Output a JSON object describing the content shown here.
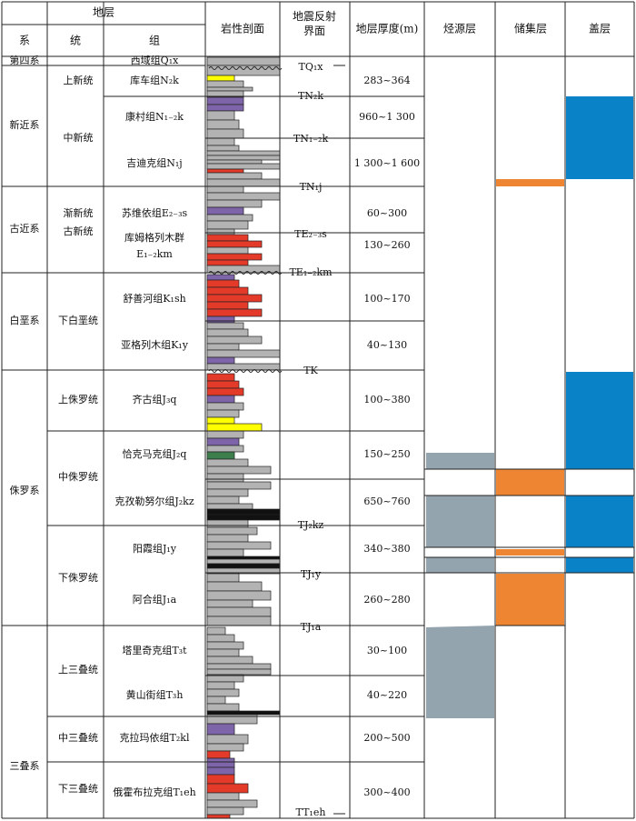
{
  "headers": {
    "strata": "地层",
    "system": "系",
    "series": "统",
    "formation": "组",
    "lithology": "岩性剖面",
    "seismic": "地震反射界面",
    "thickness": "地层厚度(m)",
    "source": "烃源层",
    "reservoir": "储集层",
    "cap": "盖层"
  },
  "colors": {
    "line": "#222222",
    "gray": "#b3b3b3",
    "purple": "#7e64a8",
    "red": "#e33a2a",
    "yellow": "#ffff00",
    "green": "#3c7e4c",
    "black": "#111111",
    "source": "#94a4ae",
    "reservoir": "#ee8533",
    "cap": "#0a82c8"
  },
  "systems": [
    {
      "key": "quaternary",
      "label": "第四系"
    },
    {
      "key": "neogene",
      "label": "新近系"
    },
    {
      "key": "paleogene",
      "label": "古近系"
    },
    {
      "key": "cretaceous",
      "label": "白垩系"
    },
    {
      "key": "jurassic",
      "label": "侏罗系"
    },
    {
      "key": "triassic",
      "label": "三叠系"
    }
  ],
  "series": [
    {
      "key": "pliocene",
      "label": "上新统"
    },
    {
      "key": "miocene",
      "label": "中新统"
    },
    {
      "key": "oligocene",
      "label": "渐新统"
    },
    {
      "key": "paleo-eocene",
      "label": "古新统"
    },
    {
      "key": "lower-cretaceous",
      "label": "下白垩统"
    },
    {
      "key": "upper-jurassic",
      "label": "上侏罗统"
    },
    {
      "key": "middle-jurassic",
      "label": "中侏罗统"
    },
    {
      "key": "lower-jurassic",
      "label": "下侏罗统"
    },
    {
      "key": "upper-triassic",
      "label": "上三叠统"
    },
    {
      "key": "middle-triassic",
      "label": "中三叠统"
    },
    {
      "key": "lower-triassic",
      "label": "下三叠统"
    }
  ],
  "formations": [
    {
      "key": "xiyu",
      "label": "西域组Q₁x",
      "thickness": ""
    },
    {
      "key": "kuqa",
      "label": "库车组N₂k",
      "thickness": "283~364"
    },
    {
      "key": "kangcun",
      "label": "康村组N₁₋₂k",
      "thickness": "960~1 300"
    },
    {
      "key": "jidike",
      "label": "吉迪克组N₁j",
      "thickness": "1 300~1 600"
    },
    {
      "key": "suweiyi",
      "label": "苏维依组E₂₋₃s",
      "thickness": "60~300"
    },
    {
      "key": "kumugeliemu",
      "label": "库姆格列木群",
      "label2": "E₁₋₂km",
      "thickness": "130~260"
    },
    {
      "key": "shushanhe",
      "label": "舒善河组K₁sh",
      "thickness": "100~170"
    },
    {
      "key": "yageliemu",
      "label": "亚格列木组K₁y",
      "thickness": "40~130"
    },
    {
      "key": "qigu",
      "label": "齐古组J₃q",
      "thickness": "100~380"
    },
    {
      "key": "qiakemake",
      "label": "恰克马克组J₂q",
      "thickness": "150~250"
    },
    {
      "key": "kezilenuer",
      "label": "克孜勒努尔组J₂kz",
      "thickness": "650~760"
    },
    {
      "key": "yangxia",
      "label": "阳霞组J₁y",
      "thickness": "340~380"
    },
    {
      "key": "ahe",
      "label": "阿合组J₁a",
      "thickness": "260~280"
    },
    {
      "key": "taliqike",
      "label": "塔里奇克组T₃t",
      "thickness": "30~100"
    },
    {
      "key": "huangshanjie",
      "label": "黄山街组T₃h",
      "thickness": "40~220"
    },
    {
      "key": "kelamayi",
      "label": "克拉玛依组T₂kl",
      "thickness": "200~500"
    },
    {
      "key": "ehuobulake",
      "label": "俄霍布拉克组T₁eh",
      "thickness": "300~400"
    }
  ],
  "seismic_interfaces": [
    {
      "key": "tq1x",
      "label": "TQ₁x"
    },
    {
      "key": "tn2k",
      "label": "TN₂k"
    },
    {
      "key": "tn12k",
      "label": "TN₁₋₂k"
    },
    {
      "key": "tn1j",
      "label": "TN₁j"
    },
    {
      "key": "te23s",
      "label": "TE₂₋₃s"
    },
    {
      "key": "te12km",
      "label": "TE₁₋₂km"
    },
    {
      "key": "tk",
      "label": "TK"
    },
    {
      "key": "tj2kz",
      "label": "TJ₂kz"
    },
    {
      "key": "tj1y",
      "label": "TJ₁y"
    },
    {
      "key": "tj1a",
      "label": "TJ₁a"
    },
    {
      "key": "tt1eh",
      "label": "TT₁eh"
    }
  ]
}
